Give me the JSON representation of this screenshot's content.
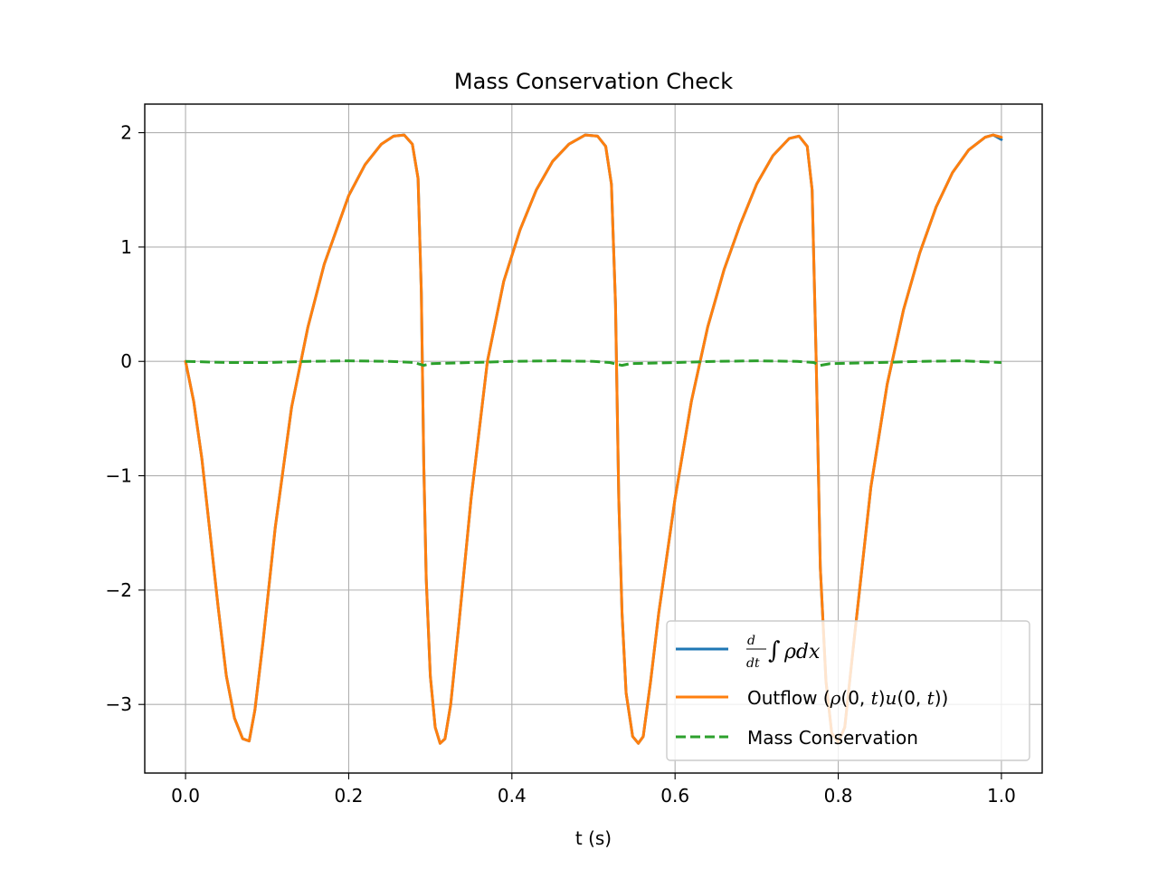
{
  "chart_data": {
    "type": "line",
    "title": "Mass Conservation Check",
    "xlabel": "t (s)",
    "ylabel": "",
    "xlim": [
      -0.05,
      1.05
    ],
    "ylim": [
      -3.6,
      2.25
    ],
    "grid": true,
    "legend_position": "lower right",
    "x_ticks": [
      0.0,
      0.2,
      0.4,
      0.6,
      0.8,
      1.0
    ],
    "x_tick_labels": [
      "0.0",
      "0.2",
      "0.4",
      "0.6",
      "0.8",
      "1.0"
    ],
    "y_ticks": [
      2,
      1,
      0,
      -1,
      -2,
      -3
    ],
    "y_tick_labels": [
      "2",
      "1",
      "0",
      "−1",
      "−2",
      "−3"
    ],
    "series": [
      {
        "name": "d/dt ∫ρdx",
        "color": "#1f77b4",
        "style": "solid",
        "x": [
          0.0,
          0.01,
          0.02,
          0.03,
          0.04,
          0.05,
          0.06,
          0.07,
          0.078,
          0.085,
          0.095,
          0.11,
          0.13,
          0.15,
          0.17,
          0.2,
          0.22,
          0.24,
          0.255,
          0.268,
          0.278,
          0.285,
          0.289,
          0.292,
          0.295,
          0.3,
          0.306,
          0.312,
          0.318,
          0.325,
          0.335,
          0.35,
          0.37,
          0.39,
          0.41,
          0.43,
          0.45,
          0.47,
          0.49,
          0.505,
          0.515,
          0.522,
          0.527,
          0.531,
          0.535,
          0.54,
          0.548,
          0.555,
          0.561,
          0.57,
          0.58,
          0.6,
          0.62,
          0.64,
          0.66,
          0.68,
          0.7,
          0.72,
          0.74,
          0.752,
          0.762,
          0.768,
          0.773,
          0.778,
          0.785,
          0.792,
          0.8,
          0.808,
          0.82,
          0.84,
          0.86,
          0.88,
          0.9,
          0.92,
          0.94,
          0.96,
          0.98,
          0.99,
          1.0
        ],
        "y": [
          0.0,
          -0.35,
          -0.85,
          -1.5,
          -2.15,
          -2.75,
          -3.12,
          -3.3,
          -3.32,
          -3.05,
          -2.45,
          -1.45,
          -0.4,
          0.3,
          0.85,
          1.45,
          1.72,
          1.9,
          1.97,
          1.98,
          1.9,
          1.6,
          0.6,
          -0.9,
          -1.9,
          -2.75,
          -3.2,
          -3.34,
          -3.3,
          -3.0,
          -2.3,
          -1.2,
          0.0,
          0.7,
          1.15,
          1.5,
          1.75,
          1.9,
          1.98,
          1.97,
          1.88,
          1.55,
          0.5,
          -1.2,
          -2.2,
          -2.9,
          -3.28,
          -3.34,
          -3.28,
          -2.8,
          -2.2,
          -1.2,
          -0.35,
          0.3,
          0.8,
          1.2,
          1.55,
          1.8,
          1.95,
          1.97,
          1.88,
          1.5,
          0.0,
          -1.8,
          -2.8,
          -3.25,
          -3.33,
          -3.2,
          -2.4,
          -1.1,
          -0.2,
          0.45,
          0.95,
          1.35,
          1.65,
          1.85,
          1.96,
          1.98,
          1.94
        ]
      },
      {
        "name": "Outflow (ρ(0,t)u(0,t))",
        "color": "#ff7f0e",
        "style": "solid",
        "x": [
          0.0,
          0.01,
          0.02,
          0.03,
          0.04,
          0.05,
          0.06,
          0.07,
          0.078,
          0.085,
          0.095,
          0.11,
          0.13,
          0.15,
          0.17,
          0.2,
          0.22,
          0.24,
          0.255,
          0.268,
          0.278,
          0.285,
          0.289,
          0.292,
          0.295,
          0.3,
          0.306,
          0.312,
          0.318,
          0.325,
          0.335,
          0.35,
          0.37,
          0.39,
          0.41,
          0.43,
          0.45,
          0.47,
          0.49,
          0.505,
          0.515,
          0.522,
          0.527,
          0.531,
          0.535,
          0.54,
          0.548,
          0.555,
          0.561,
          0.57,
          0.58,
          0.6,
          0.62,
          0.64,
          0.66,
          0.68,
          0.7,
          0.72,
          0.74,
          0.752,
          0.762,
          0.768,
          0.773,
          0.778,
          0.785,
          0.792,
          0.8,
          0.808,
          0.82,
          0.84,
          0.86,
          0.88,
          0.9,
          0.92,
          0.94,
          0.96,
          0.98,
          0.99,
          1.0
        ],
        "y": [
          0.0,
          -0.35,
          -0.85,
          -1.5,
          -2.15,
          -2.75,
          -3.12,
          -3.3,
          -3.32,
          -3.05,
          -2.45,
          -1.45,
          -0.4,
          0.3,
          0.85,
          1.45,
          1.72,
          1.9,
          1.97,
          1.98,
          1.9,
          1.6,
          0.6,
          -0.9,
          -1.9,
          -2.75,
          -3.2,
          -3.34,
          -3.3,
          -3.0,
          -2.3,
          -1.2,
          0.0,
          0.7,
          1.15,
          1.5,
          1.75,
          1.9,
          1.98,
          1.97,
          1.88,
          1.55,
          0.5,
          -1.2,
          -2.2,
          -2.9,
          -3.28,
          -3.34,
          -3.28,
          -2.8,
          -2.2,
          -1.2,
          -0.35,
          0.3,
          0.8,
          1.2,
          1.55,
          1.8,
          1.95,
          1.97,
          1.88,
          1.5,
          0.0,
          -1.8,
          -2.8,
          -3.25,
          -3.33,
          -3.2,
          -2.4,
          -1.1,
          -0.2,
          0.45,
          0.95,
          1.35,
          1.65,
          1.85,
          1.96,
          1.98,
          1.96
        ]
      },
      {
        "name": "Mass Conservation",
        "color": "#2ca02c",
        "style": "dashed",
        "x": [
          0.0,
          0.05,
          0.1,
          0.15,
          0.2,
          0.25,
          0.28,
          0.292,
          0.3,
          0.35,
          0.4,
          0.45,
          0.5,
          0.52,
          0.535,
          0.545,
          0.6,
          0.65,
          0.7,
          0.75,
          0.77,
          0.778,
          0.79,
          0.85,
          0.9,
          0.95,
          1.0
        ],
        "y": [
          0.0,
          -0.01,
          -0.01,
          0.0,
          0.005,
          0.0,
          -0.01,
          -0.035,
          -0.02,
          -0.01,
          0.0,
          0.005,
          0.0,
          -0.01,
          -0.035,
          -0.02,
          -0.01,
          0.0,
          0.005,
          0.0,
          -0.01,
          -0.035,
          -0.02,
          -0.01,
          0.0,
          0.005,
          -0.01
        ]
      }
    ]
  }
}
